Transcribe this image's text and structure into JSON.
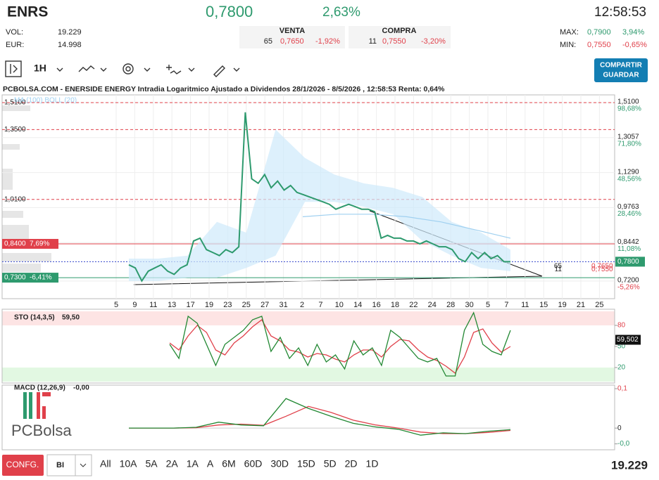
{
  "header": {
    "ticker": "ENRS",
    "price": "0,7800",
    "change": "2,63%",
    "time": "12:58:53",
    "vol_label": "VOL:",
    "vol": "19.229",
    "eur_label": "EUR:",
    "eur": "14.998",
    "venta": {
      "label": "VENTA",
      "qty": "65",
      "price": "0,7650",
      "pct": "-1,92%"
    },
    "compra": {
      "label": "COMPRA",
      "qty": "11",
      "price": "0,7550",
      "pct": "-3,20%"
    },
    "max_label": "MAX:",
    "max": "0,7900",
    "max_pct": "3,94%",
    "min_label": "MIN:",
    "min": "0,7550",
    "min_pct": "-0,65%"
  },
  "toolbar": {
    "interval": "1H",
    "share": "COMPARTIR",
    "save": "GUARDAR"
  },
  "chart": {
    "type": "line",
    "title": "PCBOLSA.COM - ENERSIDE ENERGY Intradia Logaritmico Ajustado a Dividendos 28/1/2026 - 8/5/2026 , 12:58:53 Renta: 0,64%",
    "legend": "MA (100) BOLL (20)",
    "log_scale": true,
    "grid": true,
    "ylim": [
      0.669,
      1.559
    ],
    "yticks": [
      {
        "value": 1.51,
        "label": "1,5100"
      },
      {
        "value": 1.3057,
        "label": "1,3057"
      },
      {
        "value": 1.129,
        "label": "1,1290"
      },
      {
        "value": 0.9763,
        "label": "0,9763"
      },
      {
        "value": 0.8442,
        "label": "0,8442"
      },
      {
        "value": 0.72,
        "label": "0,7200"
      }
    ],
    "ytick_pcts": [
      "98,68%",
      "71,80%",
      "48,56%",
      "28,46%",
      "11,08%",
      "-5,26%"
    ],
    "current": {
      "value": 0.78,
      "label": "0,7800"
    },
    "offers": [
      {
        "value": 0.765,
        "qty": "65",
        "label": "0,7650"
      },
      {
        "value": 0.755,
        "qty": "11",
        "label": "0,7550"
      }
    ],
    "levels": [
      {
        "value": 1.51,
        "label": "1,5100",
        "style": "dashed"
      },
      {
        "value": 1.35,
        "label": "1,3500",
        "style": "dashed"
      },
      {
        "value": 1.01,
        "label": "1,0100",
        "style": "dashed"
      },
      {
        "value": 0.84,
        "label": "0,8400",
        "pct": "7,69%",
        "style": "resistance"
      },
      {
        "value": 0.73,
        "label": "0,7300",
        "pct": "-6,41%",
        "style": "support"
      }
    ],
    "dates": [
      "5",
      "9",
      "11",
      "13",
      "17",
      "19",
      "23",
      "25",
      "27",
      "31",
      "2",
      "7",
      "10",
      "14",
      "16",
      "18",
      "22",
      "24",
      "28",
      "30",
      "5",
      "7",
      "11",
      "15",
      "19",
      "21",
      "25"
    ],
    "price": {
      "color": "#2e9a6e",
      "values": [
        0.77,
        0.76,
        0.72,
        0.75,
        0.76,
        0.77,
        0.75,
        0.74,
        0.76,
        0.77,
        0.85,
        0.86,
        0.82,
        0.81,
        0.8,
        0.82,
        0.81,
        0.83,
        1.45,
        1.1,
        1.08,
        1.12,
        1.06,
        1.09,
        1.05,
        1.07,
        1.04,
        1.03,
        1.02,
        1.01,
        1.0,
        0.99,
        0.97,
        0.98,
        0.99,
        0.98,
        0.97,
        0.97,
        0.96,
        0.86,
        0.87,
        0.86,
        0.86,
        0.85,
        0.85,
        0.84,
        0.85,
        0.84,
        0.83,
        0.83,
        0.82,
        0.79,
        0.78,
        0.81,
        0.79,
        0.81,
        0.79,
        0.8,
        0.78,
        0.78
      ]
    },
    "boll_upper": [
      0.79,
      0.79,
      0.8,
      0.92,
      0.88,
      1.35,
      1.2,
      1.12,
      1.08,
      1.06,
      1.02,
      0.92,
      0.88,
      0.82
    ],
    "boll_lower": [
      0.72,
      0.72,
      0.73,
      0.73,
      0.76,
      0.8,
      1.0,
      1.0,
      0.98,
      0.95,
      0.85,
      0.8,
      0.76,
      0.75
    ],
    "ma100": [
      0.94,
      0.95,
      0.95,
      0.94,
      0.92,
      0.89,
      0.86
    ]
  },
  "sto": {
    "type": "line",
    "label": "STO (14,3,5)",
    "last": "59,50",
    "last_box": "59,502",
    "ylim": [
      0,
      100
    ],
    "yticks": [
      20,
      50,
      80
    ],
    "k": [
      53,
      33,
      93,
      83,
      53,
      23,
      53,
      63,
      73,
      88,
      93,
      43,
      63,
      33,
      48,
      23,
      53,
      28,
      38,
      18,
      58,
      38,
      48,
      23,
      73,
      63,
      48,
      33,
      28,
      33,
      8,
      8,
      73,
      98,
      53,
      43,
      38,
      73
    ],
    "d": [
      55,
      45,
      65,
      80,
      70,
      45,
      38,
      55,
      65,
      78,
      88,
      65,
      58,
      45,
      42,
      35,
      40,
      38,
      32,
      28,
      38,
      45,
      45,
      35,
      50,
      60,
      58,
      45,
      35,
      30,
      22,
      12,
      35,
      70,
      75,
      55,
      42,
      50
    ]
  },
  "macd": {
    "type": "line",
    "label": "MACD (12,26,9)",
    "last": "-0,00",
    "ylim": [
      -0.055,
      0.109
    ],
    "yticks": [
      {
        "value": 0.1,
        "label": "0,1"
      },
      0,
      {
        "value": -0.04,
        "label": "-0,0"
      }
    ],
    "macd": [
      0,
      0,
      0,
      0.002,
      0.015,
      0.008,
      0.006,
      0.075,
      0.05,
      0.03,
      0.012,
      0.003,
      -0.003,
      -0.018,
      -0.012,
      -0.014,
      -0.008,
      -0.004
    ],
    "signal": [
      0,
      0,
      0,
      0.001,
      0.008,
      0.01,
      0.007,
      0.03,
      0.055,
      0.04,
      0.02,
      0.008,
      0,
      -0.01,
      -0.014,
      -0.014,
      -0.011,
      -0.006
    ]
  },
  "logo": "PCBolsa",
  "footer": {
    "config": "CONFG.",
    "select": "BI",
    "ranges": [
      "All",
      "10A",
      "5A",
      "2A",
      "1A",
      "A",
      "6M",
      "60D",
      "30D",
      "15D",
      "5D",
      "2D",
      "1D"
    ],
    "volume": "19.229"
  }
}
